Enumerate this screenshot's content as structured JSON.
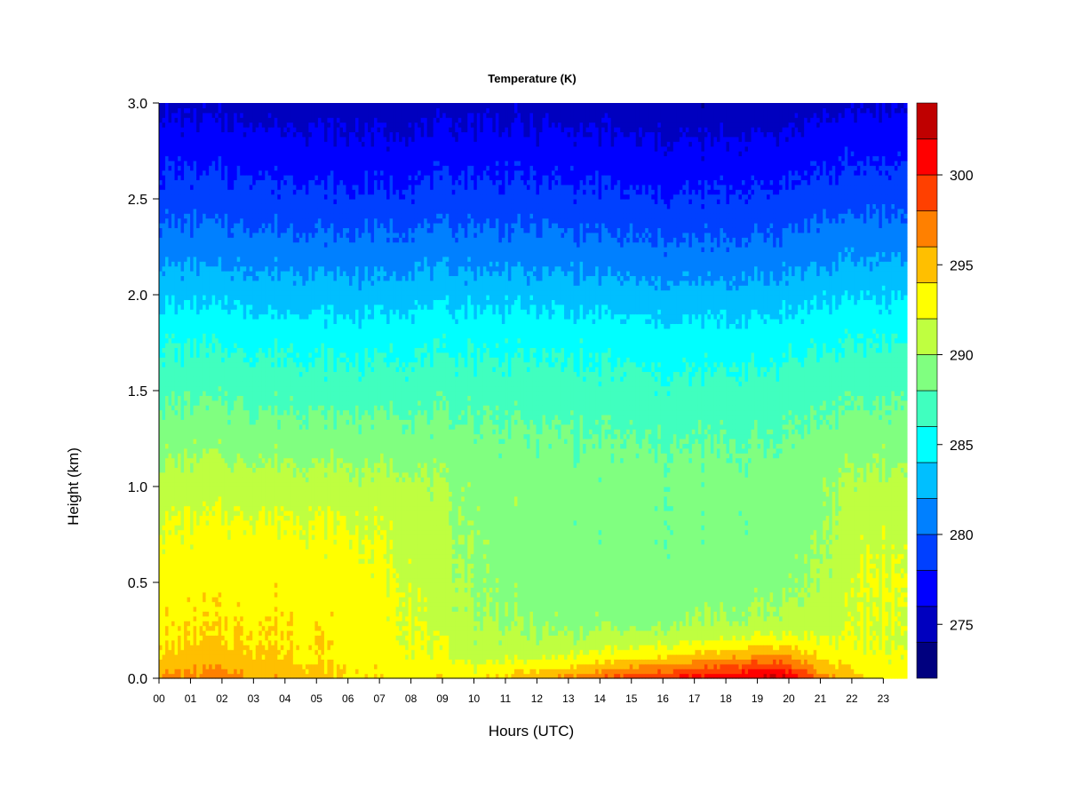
{
  "chart_data": {
    "type": "heatmap",
    "title": "Temperature (K)",
    "xlabel": "Hours (UTC)",
    "ylabel": "Height (km)",
    "x_ticks": [
      "00",
      "01",
      "02",
      "03",
      "04",
      "05",
      "06",
      "07",
      "08",
      "09",
      "10",
      "11",
      "12",
      "13",
      "14",
      "15",
      "16",
      "17",
      "18",
      "19",
      "20",
      "21",
      "22",
      "23"
    ],
    "xlim": [
      0,
      23.75
    ],
    "y_ticks": [
      "0.0",
      "0.5",
      "1.0",
      "1.5",
      "2.0",
      "2.5",
      "3.0"
    ],
    "ylim": [
      0,
      3.0
    ],
    "colorbar": {
      "ticks": [
        "275",
        "280",
        "285",
        "290",
        "295",
        "300"
      ],
      "range": [
        272,
        304
      ],
      "levels": [
        272,
        274,
        276,
        278,
        280,
        282,
        284,
        286,
        288,
        290,
        292,
        294,
        296,
        298,
        300,
        302,
        304
      ],
      "colors": [
        "#00007F",
        "#0000BF",
        "#0000FF",
        "#0040FF",
        "#0080FF",
        "#00BFFF",
        "#00FFFF",
        "#40FFBF",
        "#80FF80",
        "#BFFF40",
        "#FFFF00",
        "#FFBF00",
        "#FF8000",
        "#FF4000",
        "#FF0000",
        "#BF0000"
      ]
    },
    "profile_heights_km": [
      0.0,
      0.1,
      0.2,
      0.3,
      0.5,
      0.8,
      1.0,
      1.2,
      1.5,
      1.8,
      2.0,
      2.2,
      2.5,
      2.8,
      3.0
    ],
    "time_profiles": [
      {
        "hour": 0,
        "temperature_k": [
          296.5,
          294.5,
          293.8,
          293.5,
          293.0,
          292.0,
          291.0,
          289.5,
          287.5,
          285.5,
          283.5,
          281.5,
          279.0,
          277.0,
          275.5
        ]
      },
      {
        "hour": 2,
        "temperature_k": [
          297.0,
          294.8,
          294.0,
          293.8,
          293.3,
          292.3,
          291.1,
          289.6,
          287.5,
          285.4,
          283.4,
          281.4,
          278.9,
          276.8,
          275.3
        ]
      },
      {
        "hour": 4,
        "temperature_k": [
          295.5,
          294.2,
          293.9,
          293.8,
          293.4,
          292.3,
          291.0,
          289.4,
          287.3,
          285.2,
          283.2,
          281.2,
          278.7,
          276.6,
          275.1
        ]
      },
      {
        "hour": 6,
        "temperature_k": [
          294.0,
          293.3,
          293.3,
          293.3,
          293.1,
          292.0,
          290.8,
          289.2,
          287.1,
          285.0,
          283.0,
          280.9,
          278.4,
          276.3,
          274.9
        ]
      },
      {
        "hour": 8,
        "temperature_k": [
          293.8,
          292.7,
          292.4,
          292.2,
          291.9,
          291.3,
          290.6,
          289.2,
          287.2,
          285.2,
          283.2,
          281.2,
          278.6,
          276.5,
          275.0
        ]
      },
      {
        "hour": 10,
        "temperature_k": [
          293.5,
          291.5,
          290.7,
          290.2,
          289.8,
          289.6,
          289.5,
          288.7,
          287.2,
          285.3,
          283.4,
          281.4,
          278.9,
          276.8,
          275.3
        ]
      },
      {
        "hour": 12,
        "temperature_k": [
          295.5,
          292.0,
          290.3,
          289.5,
          289.0,
          289.0,
          289.2,
          288.5,
          287.0,
          285.2,
          283.2,
          281.2,
          278.7,
          276.6,
          275.1
        ]
      },
      {
        "hour": 14,
        "temperature_k": [
          298.0,
          293.0,
          290.6,
          289.4,
          288.8,
          288.6,
          288.8,
          288.2,
          286.8,
          285.0,
          283.0,
          281.0,
          278.5,
          276.4,
          274.9
        ]
      },
      {
        "hour": 16,
        "temperature_k": [
          300.0,
          294.5,
          291.0,
          289.5,
          288.8,
          288.5,
          288.6,
          288.0,
          286.5,
          284.6,
          282.6,
          280.6,
          278.1,
          276.0,
          274.5
        ]
      },
      {
        "hour": 18,
        "temperature_k": [
          301.5,
          296.0,
          292.0,
          290.0,
          289.0,
          288.6,
          288.7,
          288.1,
          286.6,
          284.7,
          282.7,
          280.7,
          278.2,
          276.1,
          274.6
        ]
      },
      {
        "hour": 19.7,
        "temperature_k": [
          303.0,
          297.5,
          292.8,
          290.6,
          289.4,
          288.9,
          288.9,
          288.3,
          286.9,
          285.0,
          283.0,
          281.0,
          278.5,
          276.4,
          274.9
        ]
      },
      {
        "hour": 21,
        "temperature_k": [
          297.5,
          294.0,
          292.0,
          291.0,
          290.2,
          289.6,
          289.6,
          288.8,
          287.3,
          285.4,
          283.5,
          281.5,
          279.0,
          276.9,
          275.4
        ]
      },
      {
        "hour": 22.5,
        "temperature_k": [
          293.5,
          292.5,
          292.0,
          292.0,
          292.2,
          291.5,
          290.5,
          289.4,
          287.6,
          285.7,
          283.8,
          281.8,
          279.3,
          277.2,
          275.7
        ]
      },
      {
        "hour": 23.75,
        "temperature_k": [
          293.5,
          292.4,
          291.8,
          291.9,
          292.1,
          291.5,
          290.6,
          289.5,
          287.7,
          285.8,
          283.9,
          281.9,
          279.4,
          277.3,
          275.8
        ]
      }
    ]
  }
}
